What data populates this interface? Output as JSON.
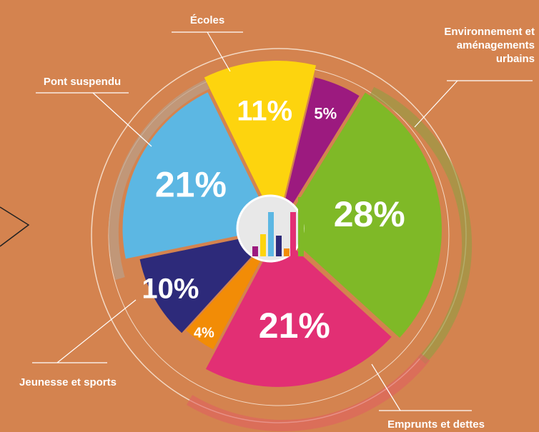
{
  "chart_data": {
    "type": "pie",
    "categories": [
      "Écoles",
      null,
      "Environnement et aménagements urbains",
      "Emprunts et dettes",
      null,
      "Jeunesse et sports",
      "Pont suspendu"
    ],
    "values": [
      11,
      5,
      28,
      21,
      4,
      10,
      21
    ],
    "value_labels": [
      "11%",
      "5%",
      "28%",
      "21%",
      "4%",
      "10%",
      "21%"
    ],
    "colors": [
      "#fdd40e",
      "#9c1a7f",
      "#7fb927",
      "#e22f74",
      "#f28c06",
      "#2d2a7a",
      "#5cb7e3"
    ]
  }
}
